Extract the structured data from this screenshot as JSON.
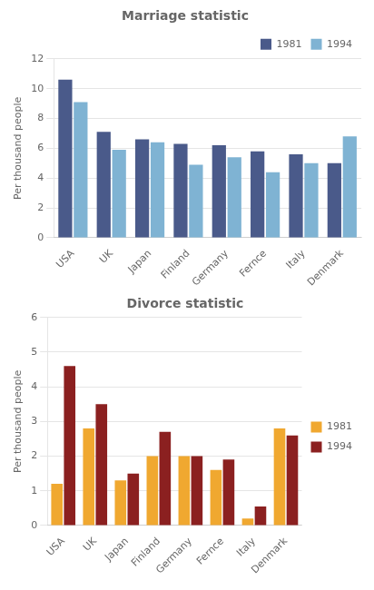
{
  "chart_data": [
    {
      "type": "bar",
      "title": "Marriage statistic",
      "categories": [
        "USA",
        "UK",
        "Japan",
        "Finland",
        "Germany",
        "Fernce",
        "Italy",
        "Denmark"
      ],
      "series": [
        {
          "name": "1981",
          "color": "#4a5a8a",
          "values": [
            10.6,
            7.1,
            6.6,
            6.3,
            6.2,
            5.8,
            5.6,
            5.0
          ]
        },
        {
          "name": "1994",
          "color": "#7fb3d3",
          "values": [
            9.1,
            5.9,
            6.4,
            4.9,
            5.4,
            4.4,
            5.0,
            6.8
          ]
        }
      ],
      "ylabel": "Per thousand people",
      "ylim": [
        0,
        12
      ],
      "yticks": [
        0,
        2,
        4,
        6,
        8,
        10,
        12
      ],
      "grid": true,
      "legend": "upper right"
    },
    {
      "type": "bar",
      "title": "Divorce statistic",
      "categories": [
        "USA",
        "UK",
        "Japan",
        "Finland",
        "Germany",
        "Fernce",
        "Italy",
        "Denmark"
      ],
      "series": [
        {
          "name": "1981",
          "color": "#f0a830",
          "values": [
            1.2,
            2.8,
            1.3,
            2.0,
            2.0,
            1.6,
            0.2,
            2.8
          ]
        },
        {
          "name": "1994",
          "color": "#8b2020",
          "values": [
            4.6,
            3.5,
            1.5,
            2.7,
            2.0,
            1.9,
            0.55,
            2.6
          ]
        }
      ],
      "ylabel": "Per thousand people",
      "ylim": [
        0,
        6
      ],
      "yticks": [
        0,
        1,
        2,
        3,
        4,
        5,
        6
      ],
      "grid": true,
      "legend": "right"
    }
  ]
}
